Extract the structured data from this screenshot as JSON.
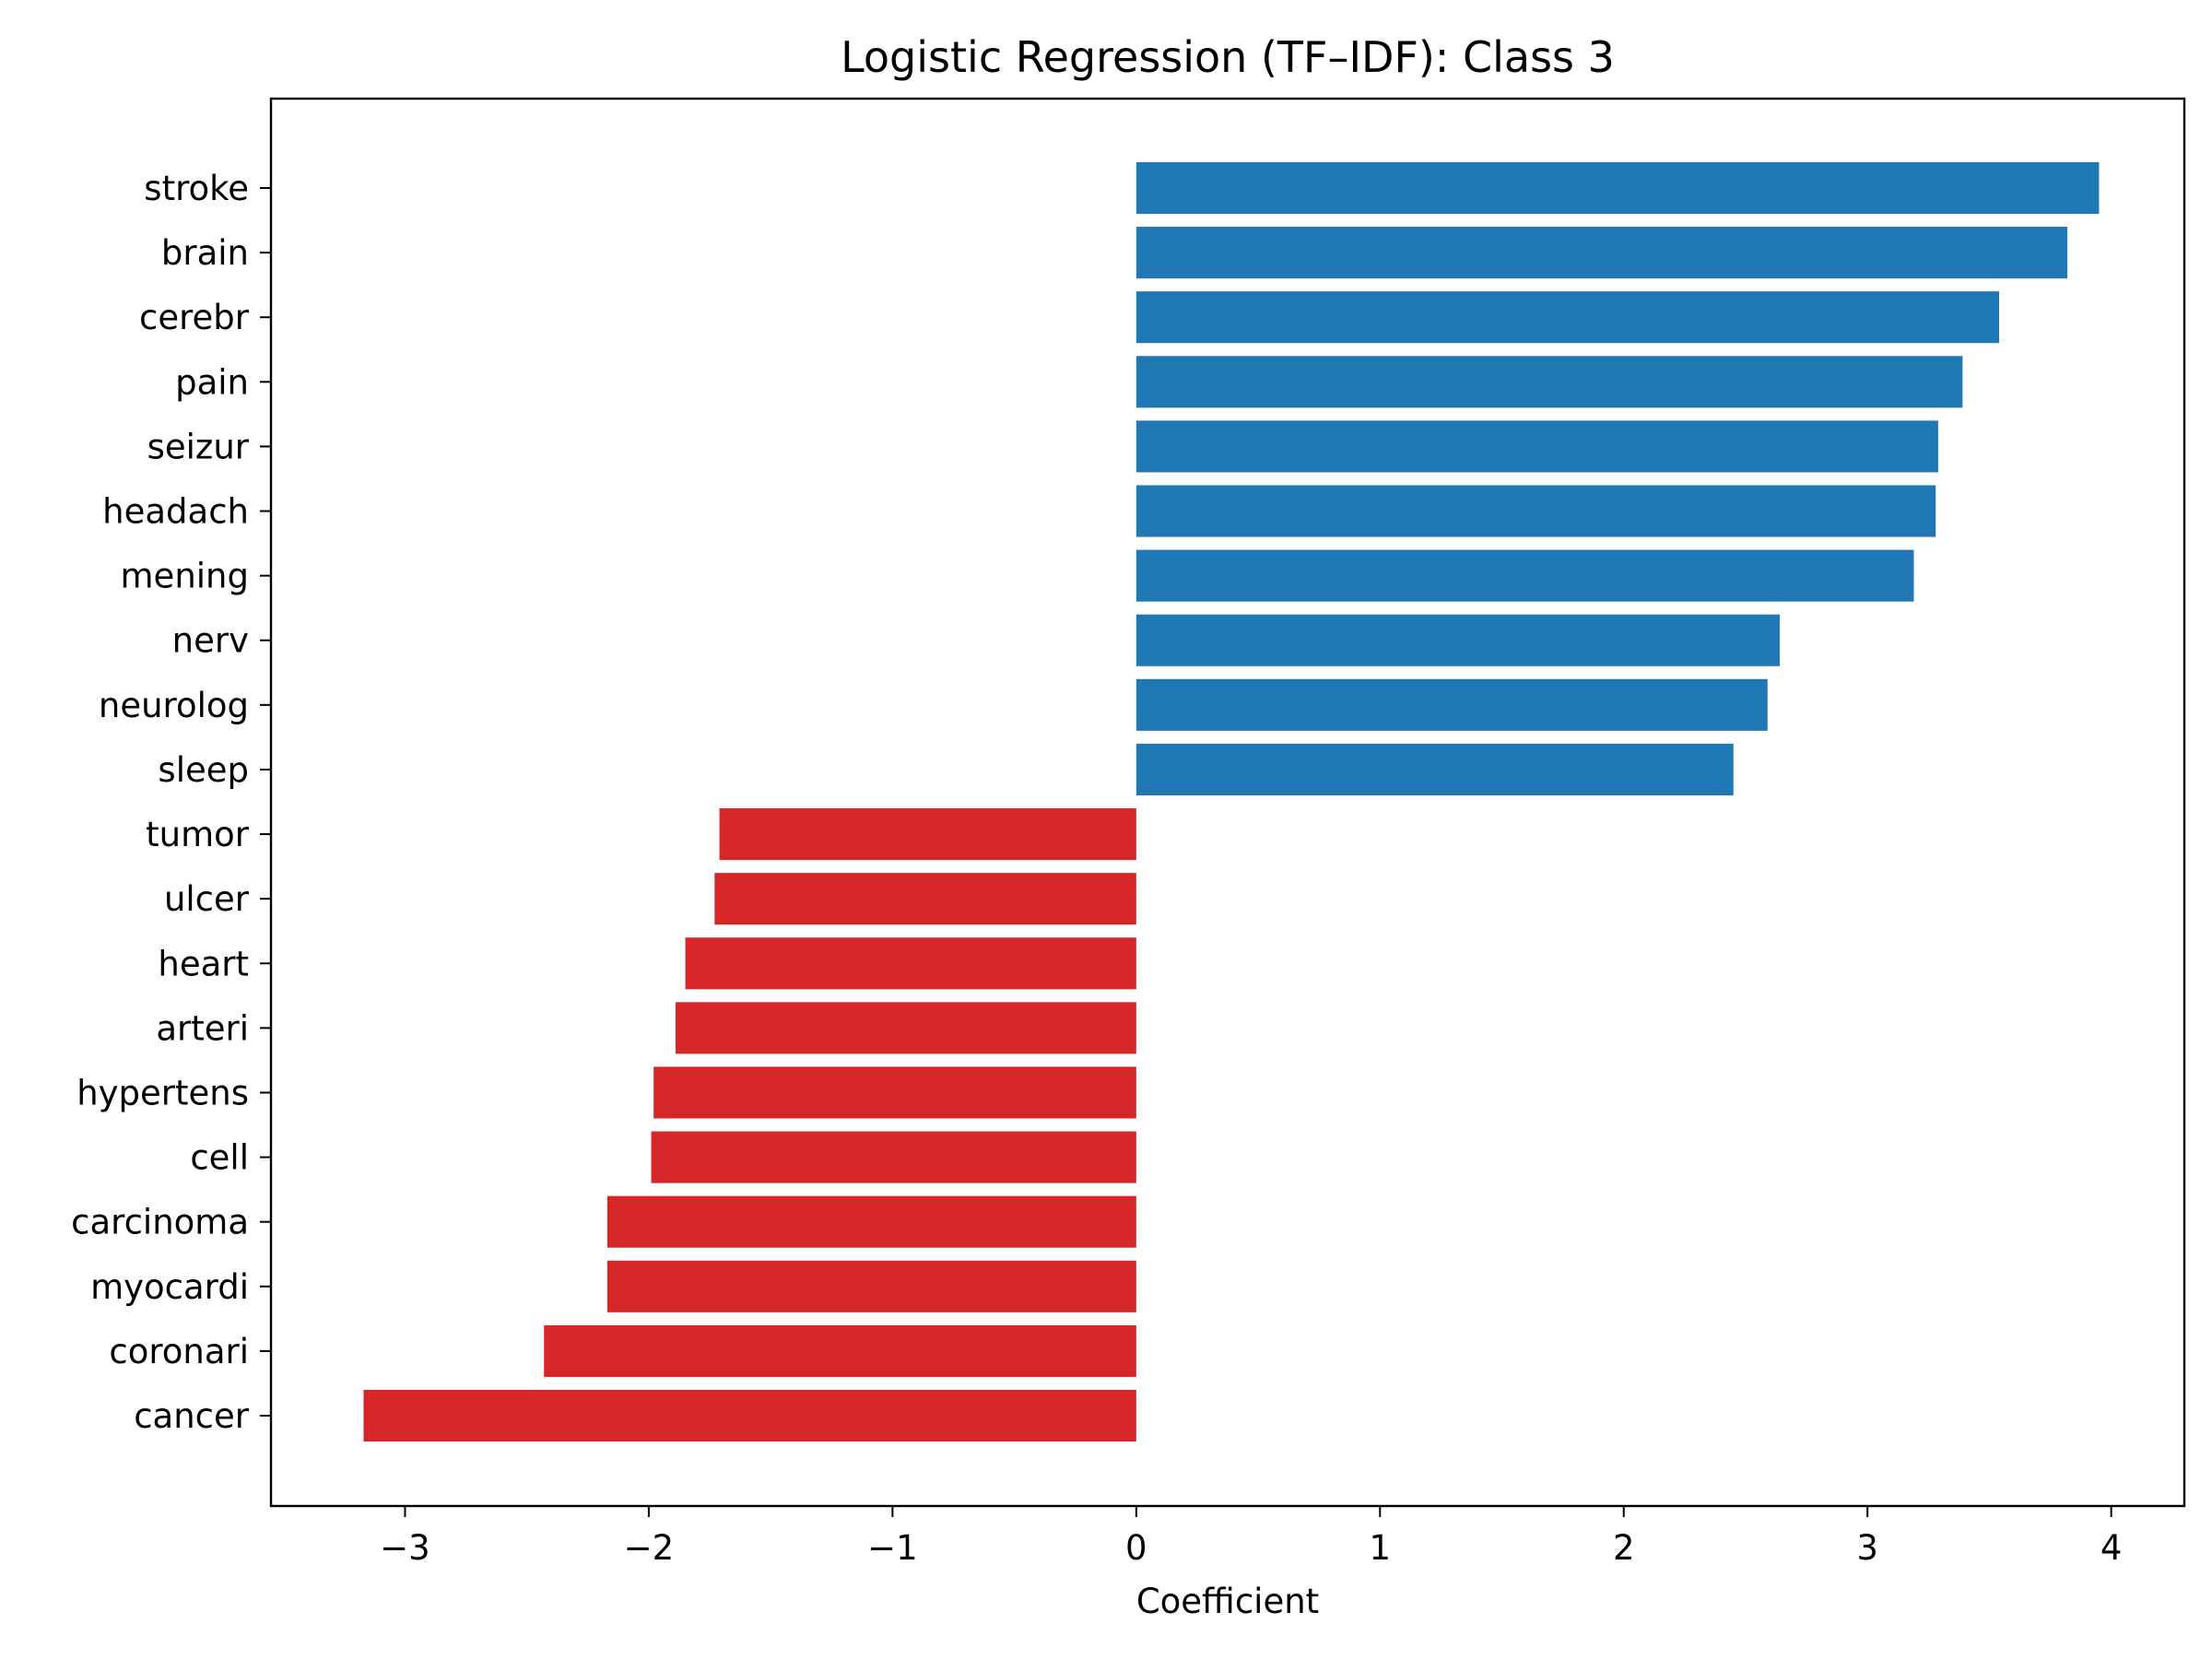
{
  "chart_data": {
    "type": "bar",
    "orientation": "horizontal",
    "title": "Logistic Regression (TF–IDF): Class 3",
    "xlabel": "Coefficient",
    "ylabel": "",
    "xlim": [
      -3.55,
      4.3
    ],
    "x_ticks": [
      -3,
      -2,
      -1,
      0,
      1,
      2,
      3,
      4
    ],
    "x_tick_labels": [
      "−3",
      "−2",
      "−1",
      "0",
      "1",
      "2",
      "3",
      "4"
    ],
    "grid": false,
    "legend": "none",
    "colors": {
      "positive": "#1f77b4",
      "negative": "#d62728"
    },
    "categories": [
      "stroke",
      "brain",
      "cerebr",
      "pain",
      "seizur",
      "headach",
      "mening",
      "nerv",
      "neurolog",
      "sleep",
      "tumor",
      "ulcer",
      "heart",
      "arteri",
      "hypertens",
      "cell",
      "carcinoma",
      "myocardi",
      "coronari",
      "cancer"
    ],
    "values": [
      3.95,
      3.82,
      3.54,
      3.39,
      3.29,
      3.28,
      3.19,
      2.64,
      2.59,
      2.45,
      -1.71,
      -1.73,
      -1.85,
      -1.89,
      -1.98,
      -1.99,
      -2.17,
      -2.17,
      -2.43,
      -3.17
    ]
  }
}
